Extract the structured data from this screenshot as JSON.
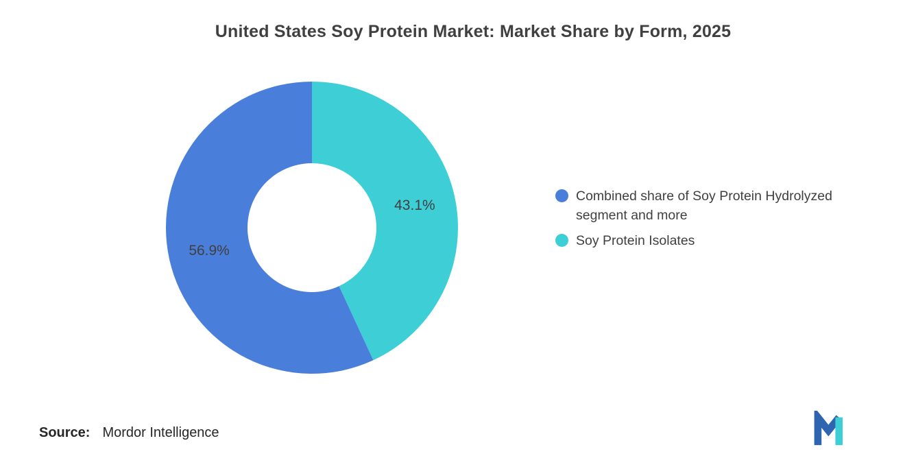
{
  "title": "United States Soy Protein Market: Market Share by Form, 2025",
  "chart_data": {
    "type": "pie",
    "subtype": "donut",
    "start": "top",
    "direction": "clockwise",
    "title": "United States Soy Protein Market: Market Share by Form, 2025",
    "slices": [
      {
        "label": "Soy Protein Isolates",
        "value": 43.1,
        "data_label": "43.1%",
        "color": "#3ECFD6"
      },
      {
        "label": "Combined share of Soy Protein Hydrolyzed segment and more",
        "value": 56.9,
        "data_label": "56.9%",
        "color": "#4A7EDB"
      }
    ],
    "legend_position": "right",
    "hole_ratio": 0.44
  },
  "legend": {
    "items": [
      {
        "label": "Combined share of Soy Protein Hydrolyzed segment and more",
        "color": "#4A7EDB"
      },
      {
        "label": "Soy Protein Isolates",
        "color": "#3ECFD6"
      }
    ]
  },
  "footer": {
    "source_label": "Source:",
    "source_value": "Mordor Intelligence",
    "logo_name": "mordor-intelligence-logo",
    "logo_colors": {
      "blue": "#2F64B1",
      "teal": "#3ECFD6"
    }
  }
}
